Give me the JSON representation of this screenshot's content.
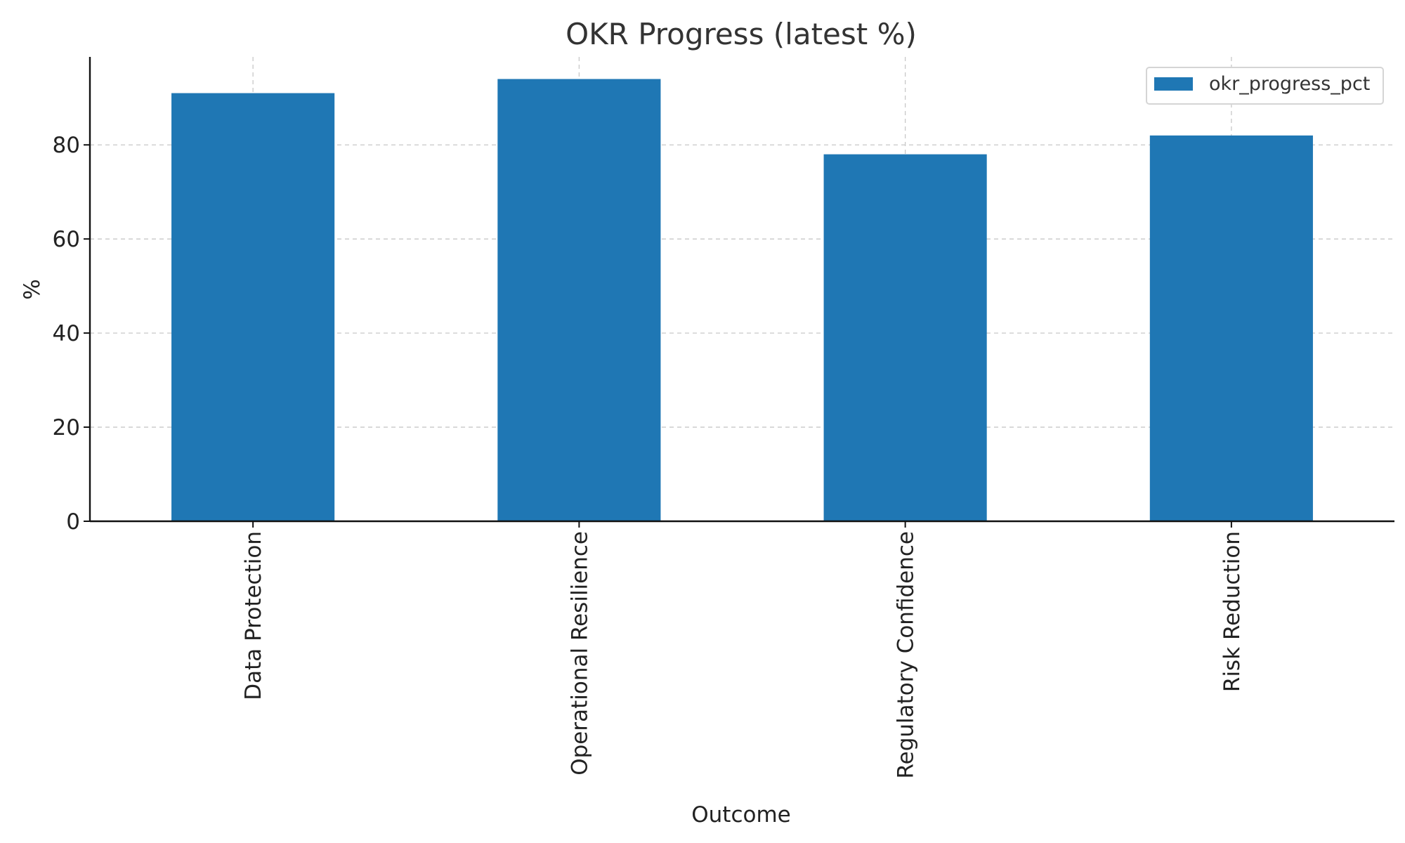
{
  "chart_data": {
    "type": "bar",
    "title": "OKR Progress (latest %)",
    "xlabel": "Outcome",
    "ylabel": "%",
    "categories": [
      "Data Protection",
      "Operational Resilience",
      "Regulatory Confidence",
      "Risk Reduction"
    ],
    "series": [
      {
        "name": "okr_progress_pct",
        "values": [
          91,
          94,
          78,
          82
        ]
      }
    ],
    "ylim": [
      0,
      98.7
    ],
    "yticks": [
      0,
      20,
      40,
      60,
      80
    ],
    "grid": true,
    "legend_position": "top-right",
    "colors": {
      "bar": "#1f77b4"
    }
  }
}
